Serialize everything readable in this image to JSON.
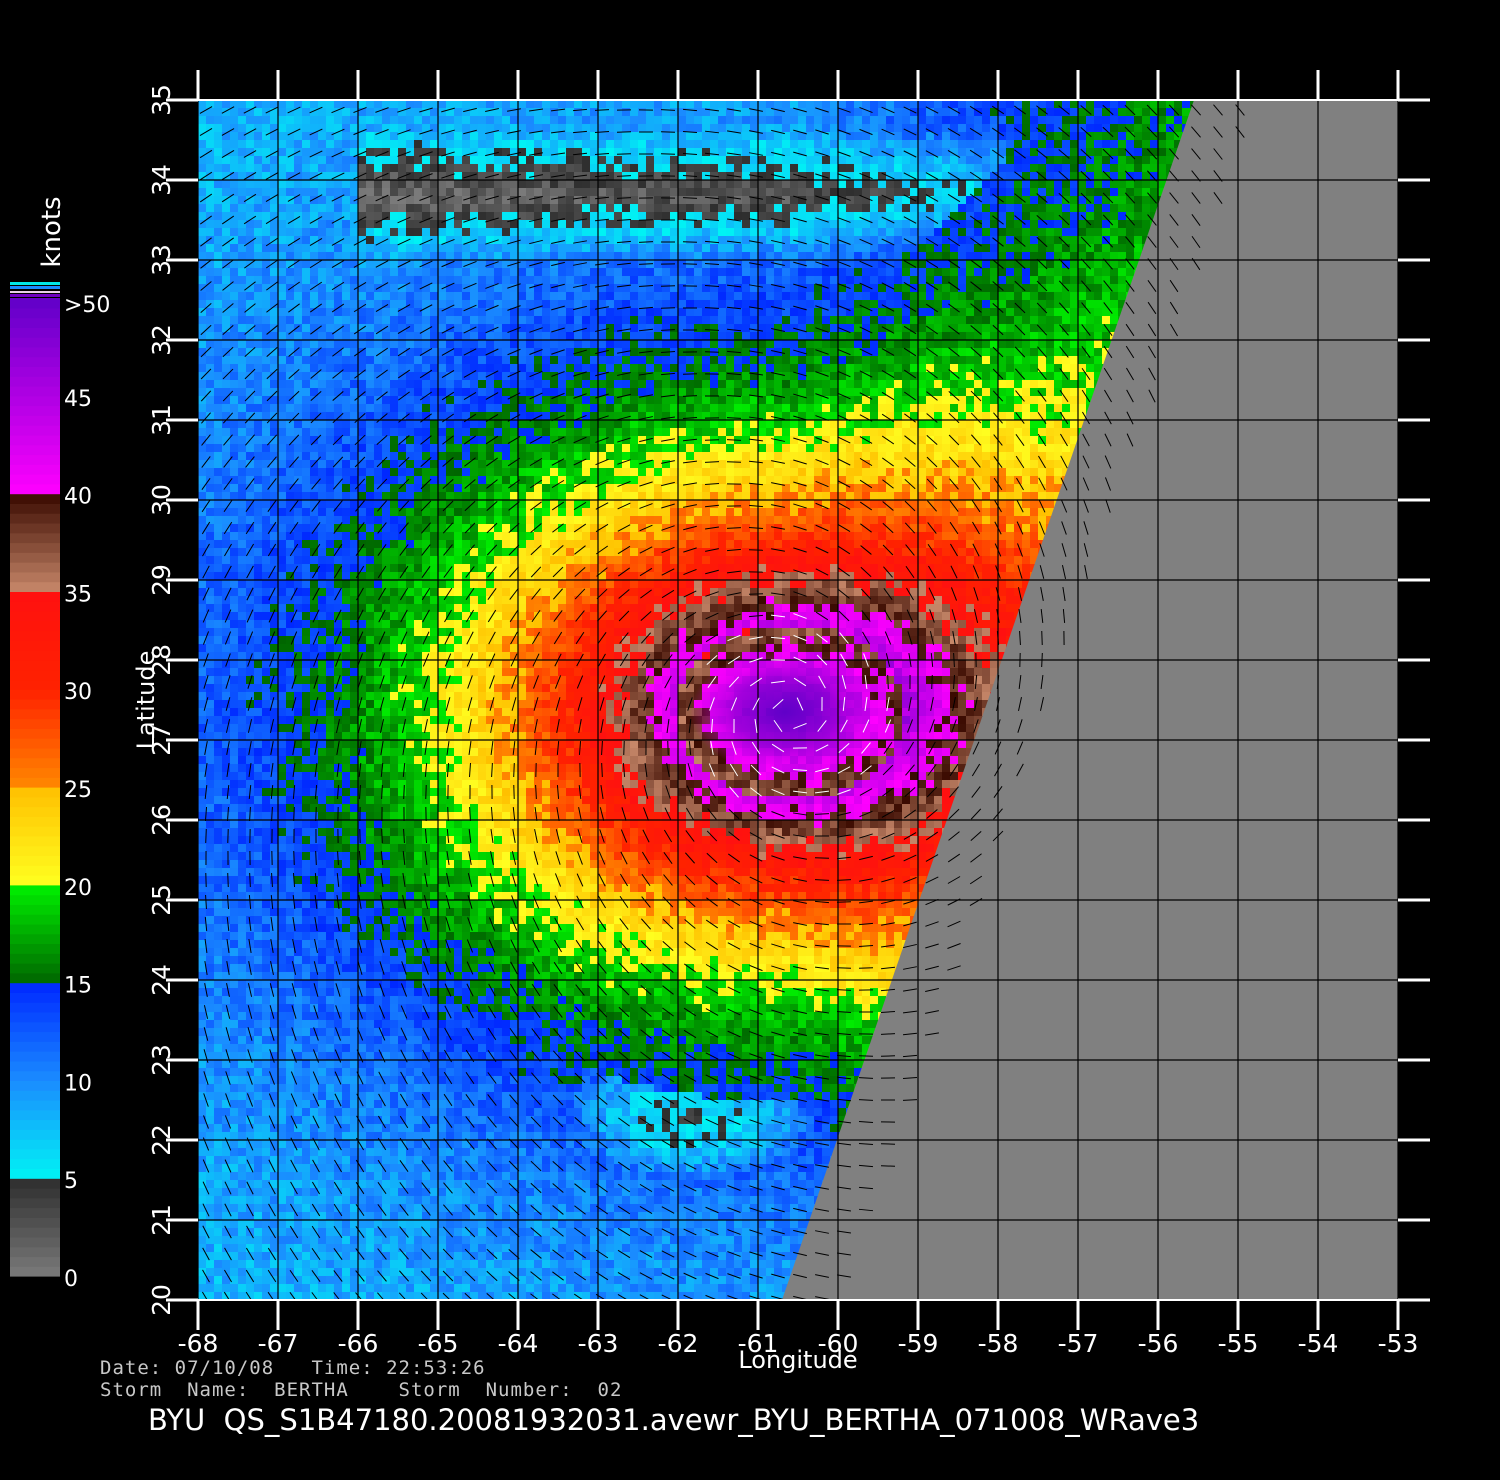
{
  "map": {
    "xlabel": "Longitude",
    "ylabel": "Latitude",
    "lon_ticks": [
      "-68",
      "-67",
      "-66",
      "-65",
      "-64",
      "-63",
      "-62",
      "-61",
      "-60",
      "-59",
      "-58",
      "-57",
      "-56",
      "-55",
      "-54",
      "-53"
    ],
    "lat_ticks": [
      "20",
      "21",
      "22",
      "23",
      "24",
      "25",
      "26",
      "27",
      "28",
      "29",
      "30",
      "31",
      "32",
      "33",
      "34",
      "35"
    ],
    "lon_range": [
      -68,
      -53
    ],
    "lat_range": [
      20,
      35
    ],
    "storm_center": {
      "lon": -60.6,
      "lat": 27.35
    },
    "swath_edge": [
      {
        "lon": -60.7,
        "lat": 20.0
      },
      {
        "lon": -55.55,
        "lat": 35.0
      }
    ],
    "no_data_color": "#808080"
  },
  "colorbar": {
    "unit_label": "knots",
    "labels": [
      {
        "text": ">50",
        "value": 50
      },
      {
        "text": "45",
        "value": 45
      },
      {
        "text": "40",
        "value": 40
      },
      {
        "text": "35",
        "value": 35
      },
      {
        "text": "30",
        "value": 30
      },
      {
        "text": "25",
        "value": 25
      },
      {
        "text": "20",
        "value": 20
      },
      {
        "text": "15",
        "value": 15
      },
      {
        "text": "10",
        "value": 10
      },
      {
        "text": "5",
        "value": 5
      },
      {
        "text": "0",
        "value": 0
      }
    ],
    "stops": [
      {
        "v": 0,
        "c": "#7a7a7a"
      },
      {
        "v": 5,
        "c": "#2e2e2e"
      },
      {
        "v": 5,
        "c": "#00f4f4"
      },
      {
        "v": 10,
        "c": "#1a8cff"
      },
      {
        "v": 15,
        "c": "#0028ff"
      },
      {
        "v": 15,
        "c": "#006600"
      },
      {
        "v": 20,
        "c": "#00f000"
      },
      {
        "v": 20,
        "c": "#ffff20"
      },
      {
        "v": 25,
        "c": "#ffc000"
      },
      {
        "v": 25,
        "c": "#ff8800"
      },
      {
        "v": 30,
        "c": "#ff2200"
      },
      {
        "v": 35,
        "c": "#ff1010"
      },
      {
        "v": 35,
        "c": "#c8886a"
      },
      {
        "v": 40,
        "c": "#3a0a00"
      },
      {
        "v": 40,
        "c": "#ff00ff"
      },
      {
        "v": 50,
        "c": "#6000c8"
      }
    ]
  },
  "metadata": {
    "line1": "Date: 07/10/08   Time: 22:53:26",
    "line2": "Storm  Name:  BERTHA    Storm  Number:  02",
    "file_title": "BYU  QS_S1B47180.20081932031.avewr_BYU_BERTHA_071008_WRave3"
  }
}
